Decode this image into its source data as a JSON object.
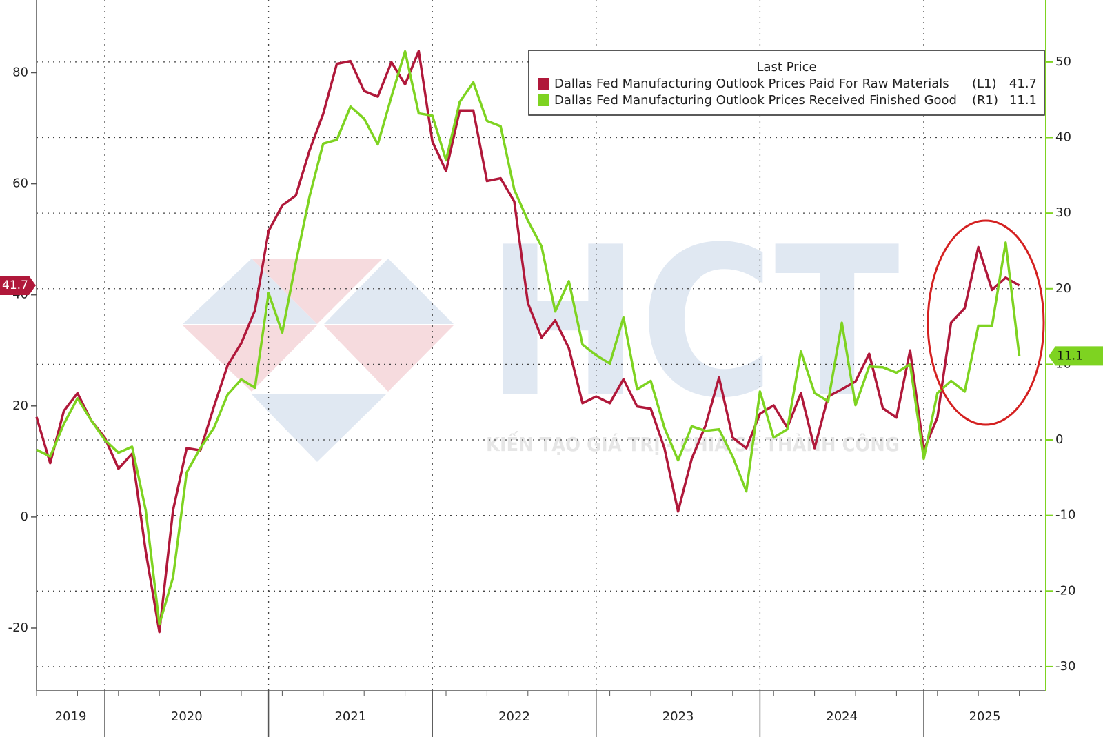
{
  "chart_data": {
    "type": "line",
    "legend_title": "Last Price",
    "legend": "top-right",
    "grid": true,
    "watermark": {
      "text": "HCT",
      "tagline": "KIẾN TẠO GIÁ TRỊ - CHIA SẺ THÀNH CÔNG"
    },
    "categories": [
      "2019",
      null,
      null,
      null,
      null,
      "2020",
      null,
      null,
      null,
      null,
      null,
      null,
      null,
      null,
      null,
      null,
      null,
      "2021",
      null,
      null,
      null,
      null,
      null,
      null,
      null,
      null,
      null,
      null,
      null,
      "2022",
      null,
      null,
      null,
      null,
      null,
      null,
      null,
      null,
      null,
      null,
      null,
      "2023",
      null,
      null,
      null,
      null,
      null,
      null,
      null,
      null,
      null,
      null,
      null,
      "2024",
      null,
      null,
      null,
      null,
      null,
      null,
      null,
      null,
      null,
      null,
      null,
      "2025",
      null,
      null,
      null,
      null,
      null,
      null,
      null
    ],
    "ylim": [
      -31.3,
      93.1
    ],
    "yticks": [
      -20,
      0,
      20,
      40,
      60,
      80
    ],
    "y2lim": [
      -33.2,
      58.2
    ],
    "y2ticks": [
      -30,
      -20,
      -10,
      0,
      10,
      20,
      30,
      40,
      50
    ],
    "series": [
      {
        "name": "Dallas Fed Manufacturing Outlook Prices Paid For Raw Materials",
        "axis_tag": "(L1)",
        "axis": "y",
        "color": "#b0183a",
        "values": [
          18,
          9.7,
          19.1,
          22.3,
          17.4,
          14.3,
          8.7,
          11.4,
          -6.2,
          -20.7,
          1.2,
          12.4,
          12.0,
          19.9,
          27.3,
          31.3,
          37.2,
          51.5,
          56.1,
          57.9,
          66,
          72.6,
          81.6,
          82.1,
          76.7,
          75.7,
          81.9,
          77.9,
          83.9,
          67.6,
          62.3,
          73.2,
          73.2,
          60.5,
          61,
          56.8,
          38.5,
          32.3,
          35.4,
          30.4,
          20.5,
          21.7,
          20.5,
          24.8,
          19.9,
          19.5,
          12.4,
          1,
          10.5,
          16.4,
          25.1,
          14.3,
          12.4,
          18.6,
          20.1,
          16.1,
          22.3,
          12.4,
          21.7,
          23,
          24.4,
          29.4,
          19.6,
          17.9,
          30,
          12,
          17.9,
          35,
          37.6,
          48.6,
          40.9,
          43.1,
          41.7
        ]
      },
      {
        "name": "Dallas Fed Manufacturing Outlook Prices Received Finished Good",
        "axis_tag": "(R1)",
        "axis": "y2",
        "color": "#7ed321",
        "values": [
          -1.3,
          -2.2,
          2.1,
          5.5,
          2.6,
          0,
          -1.7,
          -0.9,
          -9.3,
          -24.4,
          -18.2,
          -4.3,
          -1.1,
          1.6,
          6,
          8,
          6.9,
          19.4,
          14.2,
          23.5,
          32.2,
          39.2,
          39.7,
          44.1,
          42.5,
          39.1,
          45.4,
          51.4,
          43.2,
          42.9,
          37,
          44.7,
          47.3,
          42.2,
          41.5,
          33.1,
          29,
          25.6,
          17,
          21,
          12.6,
          11.2,
          10.1,
          16.2,
          6.7,
          7.8,
          1.6,
          -2.7,
          1.8,
          1.2,
          1.4,
          -2.2,
          -6.8,
          6.4,
          0.3,
          1.4,
          11.7,
          6.2,
          5.1,
          15.5,
          4.6,
          9.7,
          9.6,
          8.9,
          10,
          -2.5,
          6.2,
          7.8,
          6.4,
          15.1,
          15.1,
          26.1,
          11.1
        ]
      }
    ]
  }
}
